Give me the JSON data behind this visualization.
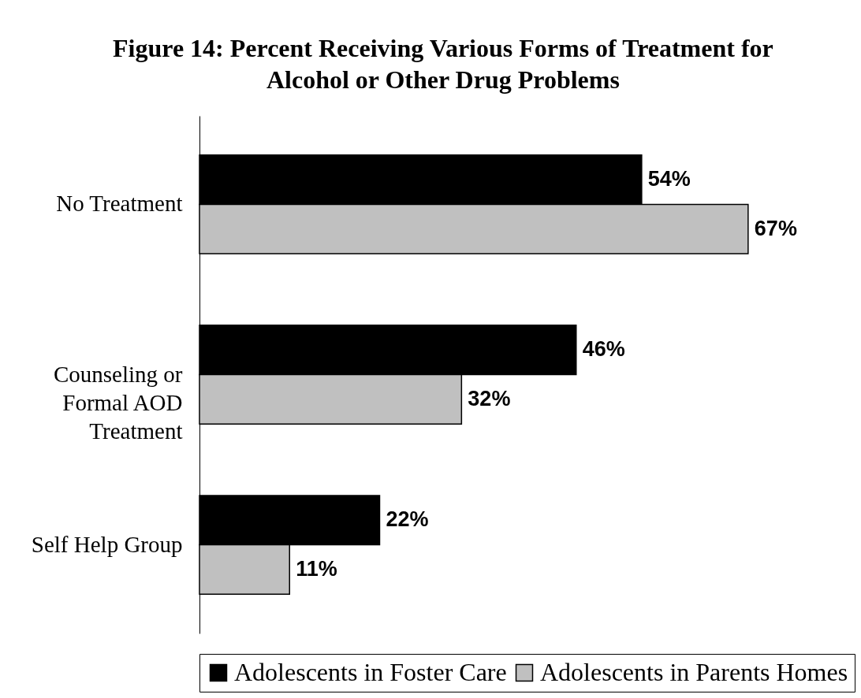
{
  "chart_data": {
    "type": "bar",
    "orientation": "horizontal",
    "title": "Figure 14:  Percent Receiving Various Forms of Treatment for Alcohol or Other Drug Problems",
    "categories": [
      "No Treatment",
      "Counseling or Formal AOD Treatment",
      "Self Help Group"
    ],
    "series": [
      {
        "name": "Adolescents in Foster Care",
        "color": "#000000",
        "values": [
          54,
          46,
          22
        ],
        "value_labels": [
          "54%",
          "46%",
          "22%"
        ]
      },
      {
        "name": "Adolescents in Parents Homes",
        "color": "#c0c0c0",
        "values": [
          67,
          32,
          11
        ],
        "value_labels": [
          "67%",
          "32%",
          "11%"
        ]
      }
    ],
    "legend": "bottom"
  }
}
